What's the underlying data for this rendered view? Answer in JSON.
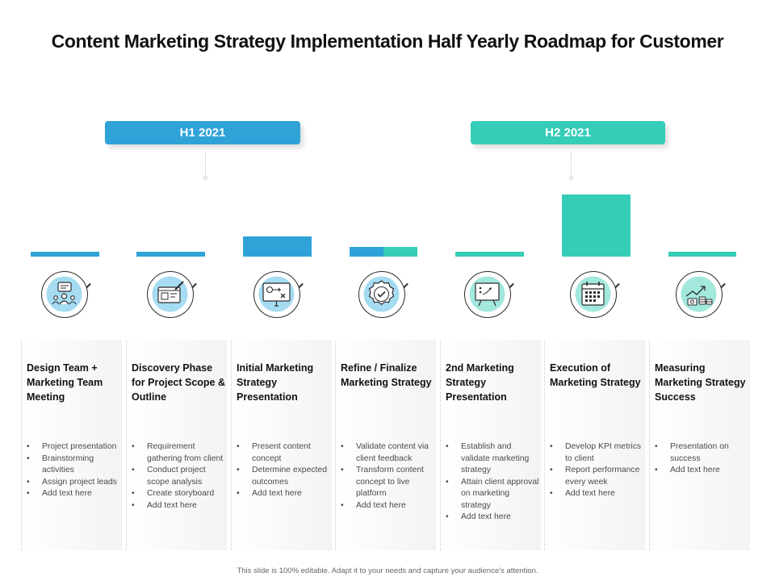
{
  "title": "Content Marketing Strategy Implementation Half Yearly Roadmap for Customer",
  "colors": {
    "blue": "#2fa3d8",
    "teal": "#35ccb8",
    "icon_fill_blue": "#a5dcf2",
    "icon_fill_teal": "#a2e8dd"
  },
  "phases": [
    {
      "label": "H1 2021",
      "color": "#2fa3d8"
    },
    {
      "label": "H2 2021",
      "color": "#35ccb8"
    }
  ],
  "stages": [
    {
      "title": "Design Team + Marketing Team Meeting",
      "icon": "team-meeting-icon",
      "bullets": [
        "Project presentation",
        "Brainstorming activities",
        "Assign project leads",
        "Add text here"
      ]
    },
    {
      "title": "Discovery Phase for Project Scope & Outline",
      "icon": "design-tablet-icon",
      "bullets": [
        "Requirement gathering from client",
        "Conduct project scope analysis",
        "Create storyboard",
        "Add text here"
      ]
    },
    {
      "title": "Initial Marketing Strategy Presentation",
      "icon": "strategy-board-icon",
      "bullets": [
        "Present content concept",
        "Determine expected outcomes",
        "Add text here"
      ]
    },
    {
      "title": "Refine / Finalize Marketing Strategy",
      "icon": "approval-badge-icon",
      "bullets": [
        "Validate content via client feedback",
        "Transform content concept to live platform",
        "Add text here"
      ]
    },
    {
      "title": "2nd Marketing Strategy Presentation",
      "icon": "presentation-board-icon",
      "bullets": [
        "Establish and validate marketing strategy",
        "Attain client approval on marketing strategy",
        "Add text here"
      ]
    },
    {
      "title": "Execution of Marketing Strategy",
      "icon": "calendar-icon",
      "bullets": [
        "Develop KPI metrics to client",
        "Report performance every week",
        "Add text here"
      ]
    },
    {
      "title": "Measuring Marketing Strategy Success",
      "icon": "growth-coins-icon",
      "bullets": [
        "Presentation on success",
        "Add text here"
      ]
    }
  ],
  "footer": "This slide is 100% editable. Adapt it to your needs and capture your audience's attention."
}
